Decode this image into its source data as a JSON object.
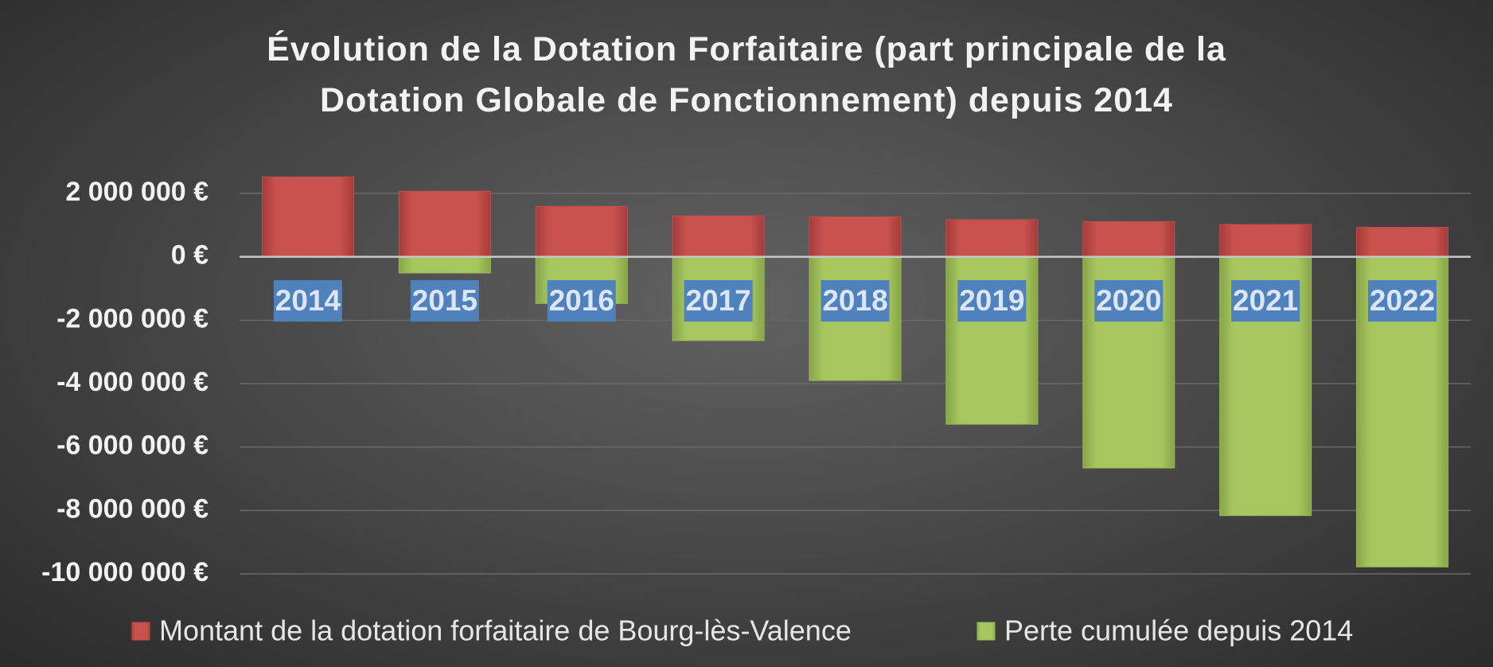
{
  "chart_data": {
    "type": "bar",
    "title": "Évolution de la Dotation Forfaitaire (part principale de la Dotation Globale de Fonctionnement) depuis 2014",
    "categories": [
      "2014",
      "2015",
      "2016",
      "2017",
      "2018",
      "2019",
      "2020",
      "2021",
      "2022"
    ],
    "series": [
      {
        "name": "Montant de la dotation forfaitaire de Bourg-lès-Valence",
        "color": "#c0504d",
        "values": [
          2520000,
          2070000,
          1590000,
          1290000,
          1260000,
          1170000,
          1110000,
          1020000,
          930000
        ]
      },
      {
        "name": "Perte cumulée depuis 2014",
        "color": "#9bbb59",
        "values": [
          0,
          -510000,
          -1470000,
          -2640000,
          -3900000,
          -5280000,
          -6660000,
          -8160000,
          -9780000
        ]
      }
    ],
    "ylim": [
      -10000000,
      2000000
    ],
    "yticks": [
      {
        "value": 2000000,
        "label": "2 000 000 €"
      },
      {
        "value": 0,
        "label": "0 €"
      },
      {
        "value": -2000000,
        "label": "-2 000 000 €"
      },
      {
        "value": -4000000,
        "label": "-4 000 000 €"
      },
      {
        "value": -6000000,
        "label": "-6 000 000 €"
      },
      {
        "value": -8000000,
        "label": "-8 000 000 €"
      },
      {
        "value": -10000000,
        "label": "-10 000 000 €"
      }
    ],
    "grid": true,
    "legend": "bottom"
  }
}
